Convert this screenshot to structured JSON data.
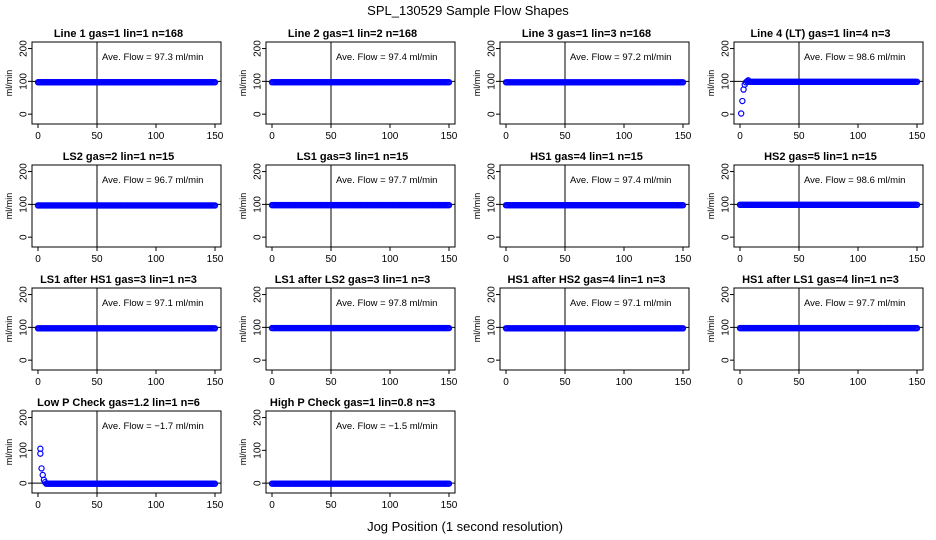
{
  "figure": {
    "title": "SPL_130529  Sample Flow Shapes",
    "xlabel": "Jog Position (1 second resolution)"
  },
  "style": {
    "point_color": "#0000ff",
    "axis_color": "#000000"
  },
  "chart_data": [
    {
      "type": "scatter",
      "title": "Line 1 gas=1 lin=1 n=168",
      "ylabel": "ml/min",
      "xlim": [
        0,
        150
      ],
      "ylim": [
        -30,
        220
      ],
      "xticks": [
        0,
        50,
        100,
        150
      ],
      "yticks": [
        0,
        100,
        200
      ],
      "vline": 50,
      "hline": 100,
      "annotation": "Ave. Flow = 97.3  ml/min",
      "shape": "flat",
      "plateau": 97.3
    },
    {
      "type": "scatter",
      "title": "Line 2 gas=1 lin=2 n=168",
      "ylabel": "ml/min",
      "xlim": [
        0,
        150
      ],
      "ylim": [
        -30,
        220
      ],
      "xticks": [
        0,
        50,
        100,
        150
      ],
      "yticks": [
        0,
        100,
        200
      ],
      "vline": 50,
      "hline": 100,
      "annotation": "Ave. Flow = 97.4  ml/min",
      "shape": "flat",
      "plateau": 97.4
    },
    {
      "type": "scatter",
      "title": "Line 3 gas=1 lin=3 n=168",
      "ylabel": "ml/min",
      "xlim": [
        0,
        150
      ],
      "ylim": [
        -30,
        220
      ],
      "xticks": [
        0,
        50,
        100,
        150
      ],
      "yticks": [
        0,
        100,
        200
      ],
      "vline": 50,
      "hline": 100,
      "annotation": "Ave. Flow = 97.2  ml/min",
      "shape": "flat",
      "plateau": 97.2
    },
    {
      "type": "scatter",
      "title": "Line 4 (LT) gas=1 lin=4 n=3",
      "ylabel": "ml/min",
      "xlim": [
        0,
        150
      ],
      "ylim": [
        -30,
        220
      ],
      "xticks": [
        0,
        50,
        100,
        150
      ],
      "yticks": [
        0,
        100,
        200
      ],
      "vline": 50,
      "hline": 100,
      "annotation": "Ave. Flow = 98.6  ml/min",
      "shape": "rise",
      "plateau": 98.6,
      "initial_points": [
        [
          1,
          2
        ],
        [
          2,
          40
        ],
        [
          3,
          75
        ],
        [
          4,
          90
        ],
        [
          5,
          97
        ],
        [
          6,
          100
        ],
        [
          7,
          103
        ]
      ]
    },
    {
      "type": "scatter",
      "title": "LS2 gas=2 lin=1 n=15",
      "ylabel": "ml/min",
      "xlim": [
        0,
        150
      ],
      "ylim": [
        -30,
        220
      ],
      "xticks": [
        0,
        50,
        100,
        150
      ],
      "yticks": [
        0,
        100,
        200
      ],
      "vline": 50,
      "hline": 100,
      "annotation": "Ave. Flow = 96.7  ml/min",
      "shape": "flat",
      "plateau": 96.7
    },
    {
      "type": "scatter",
      "title": "LS1 gas=3 lin=1 n=15",
      "ylabel": "ml/min",
      "xlim": [
        0,
        150
      ],
      "ylim": [
        -30,
        220
      ],
      "xticks": [
        0,
        50,
        100,
        150
      ],
      "yticks": [
        0,
        100,
        200
      ],
      "vline": 50,
      "hline": 100,
      "annotation": "Ave. Flow = 97.7  ml/min",
      "shape": "flat",
      "plateau": 97.7
    },
    {
      "type": "scatter",
      "title": "HS1 gas=4 lin=1 n=15",
      "ylabel": "ml/min",
      "xlim": [
        0,
        150
      ],
      "ylim": [
        -30,
        220
      ],
      "xticks": [
        0,
        50,
        100,
        150
      ],
      "yticks": [
        0,
        100,
        200
      ],
      "vline": 50,
      "hline": 100,
      "annotation": "Ave. Flow = 97.4  ml/min",
      "shape": "flat",
      "plateau": 97.4
    },
    {
      "type": "scatter",
      "title": "HS2 gas=5 lin=1 n=15",
      "ylabel": "ml/min",
      "xlim": [
        0,
        150
      ],
      "ylim": [
        -30,
        220
      ],
      "xticks": [
        0,
        50,
        100,
        150
      ],
      "yticks": [
        0,
        100,
        200
      ],
      "vline": 50,
      "hline": 100,
      "annotation": "Ave. Flow = 98.6  ml/min",
      "shape": "flat",
      "plateau": 98.6
    },
    {
      "type": "scatter",
      "title": "LS1 after HS1 gas=3 lin=1 n=3",
      "ylabel": "ml/min",
      "xlim": [
        0,
        150
      ],
      "ylim": [
        -30,
        220
      ],
      "xticks": [
        0,
        50,
        100,
        150
      ],
      "yticks": [
        0,
        100,
        200
      ],
      "vline": 50,
      "hline": 100,
      "annotation": "Ave. Flow = 97.1  ml/min",
      "shape": "flat",
      "plateau": 97.1
    },
    {
      "type": "scatter",
      "title": "LS1 after LS2 gas=3 lin=1 n=3",
      "ylabel": "ml/min",
      "xlim": [
        0,
        150
      ],
      "ylim": [
        -30,
        220
      ],
      "xticks": [
        0,
        50,
        100,
        150
      ],
      "yticks": [
        0,
        100,
        200
      ],
      "vline": 50,
      "hline": 100,
      "annotation": "Ave. Flow = 97.8  ml/min",
      "shape": "flat",
      "plateau": 97.8
    },
    {
      "type": "scatter",
      "title": "HS1 after HS2 gas=4 lin=1 n=3",
      "ylabel": "ml/min",
      "xlim": [
        0,
        150
      ],
      "ylim": [
        -30,
        220
      ],
      "xticks": [
        0,
        50,
        100,
        150
      ],
      "yticks": [
        0,
        100,
        200
      ],
      "vline": 50,
      "hline": 100,
      "annotation": "Ave. Flow = 97.1  ml/min",
      "shape": "flat",
      "plateau": 97.1
    },
    {
      "type": "scatter",
      "title": "HS1 after LS1 gas=4 lin=1 n=3",
      "ylabel": "ml/min",
      "xlim": [
        0,
        150
      ],
      "ylim": [
        -30,
        220
      ],
      "xticks": [
        0,
        50,
        100,
        150
      ],
      "yticks": [
        0,
        100,
        200
      ],
      "vline": 50,
      "hline": 100,
      "annotation": "Ave. Flow = 97.7  ml/min",
      "shape": "flat",
      "plateau": 97.7
    },
    {
      "type": "scatter",
      "title": "Low P Check gas=1.2 lin=1 n=6",
      "ylabel": "ml/min",
      "xlim": [
        0,
        150
      ],
      "ylim": [
        -30,
        220
      ],
      "xticks": [
        0,
        50,
        100,
        150
      ],
      "yticks": [
        0,
        100,
        200
      ],
      "vline": 50,
      "hline": 0,
      "annotation": "Ave. Flow = −1.7  ml/min",
      "shape": "decay",
      "plateau": -1.7,
      "initial_points": [
        [
          2,
          105
        ],
        [
          2,
          90
        ],
        [
          3,
          45
        ],
        [
          4,
          25
        ],
        [
          5,
          10
        ],
        [
          6,
          3
        ]
      ]
    },
    {
      "type": "scatter",
      "title": "High P Check gas=1 lin=0.8 n=3",
      "ylabel": "ml/min",
      "xlim": [
        0,
        150
      ],
      "ylim": [
        -30,
        220
      ],
      "xticks": [
        0,
        50,
        100,
        150
      ],
      "yticks": [
        0,
        100,
        200
      ],
      "vline": 50,
      "hline": 0,
      "annotation": "Ave. Flow = −1.5  ml/min",
      "shape": "flat",
      "plateau": -1.5
    }
  ]
}
